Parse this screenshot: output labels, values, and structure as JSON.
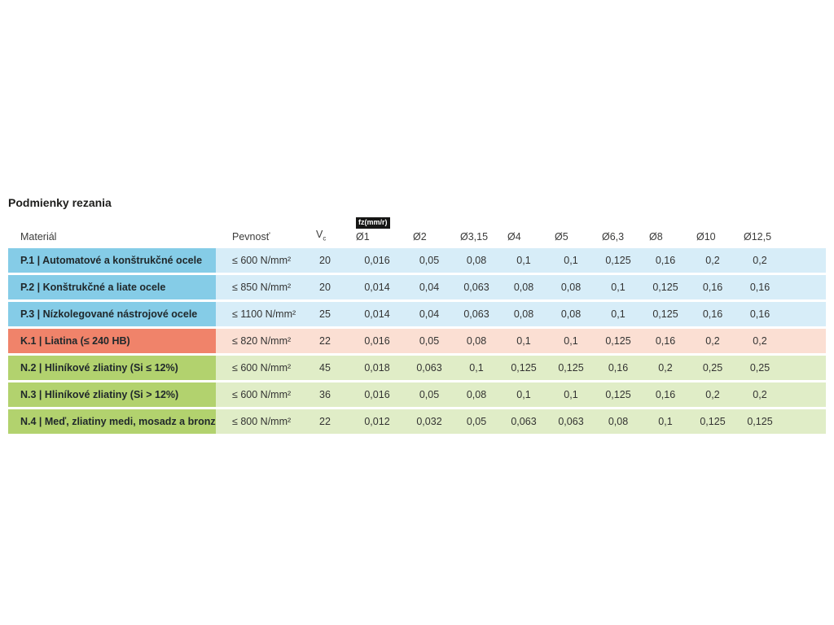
{
  "page": {
    "title": "Podmienky rezania"
  },
  "colors": {
    "steel_strong": "#85CCE7",
    "steel_light": "#D7EDF8",
    "cast_iron_strong": "#F0836A",
    "cast_iron_light": "#FBDFD3",
    "nonferrous_strong": "#B2D26E",
    "nonferrous_light": "#E0EDC7",
    "badge_bg": "#161615",
    "badge_text": "#FFFFFF"
  },
  "table": {
    "headers": {
      "material": "Materiál",
      "strength": "Pevnosť",
      "vc_main": "V",
      "vc_sub": "c",
      "feed_badge": "fz(mm/r)"
    },
    "diameter_columns": [
      "Ø1",
      "Ø2",
      "Ø3,15",
      "Ø4",
      "Ø5",
      "Ø6,3",
      "Ø8",
      "Ø10",
      "Ø12,5"
    ],
    "rows": [
      {
        "code": "P.1",
        "material": "P.1 | Automatové a konštrukčné ocele",
        "strength": "≤ 600 N/mm²",
        "vc": "20",
        "group": "steel",
        "feeds": [
          "0,016",
          "0,05",
          "0,08",
          "0,1",
          "0,1",
          "0,125",
          "0,16",
          "0,2",
          "0,2"
        ]
      },
      {
        "code": "P.2",
        "material": "P.2 | Konštrukčné a liate ocele",
        "strength": "≤ 850 N/mm²",
        "vc": "20",
        "group": "steel",
        "feeds": [
          "0,014",
          "0,04",
          "0,063",
          "0,08",
          "0,08",
          "0,1",
          "0,125",
          "0,16",
          "0,16"
        ]
      },
      {
        "code": "P.3",
        "material": "P.3 | Nízkolegované nástrojové ocele",
        "strength": "≤ 1100 N/mm²",
        "vc": "25",
        "group": "steel",
        "feeds": [
          "0,014",
          "0,04",
          "0,063",
          "0,08",
          "0,08",
          "0,1",
          "0,125",
          "0,16",
          "0,16"
        ]
      },
      {
        "code": "K.1",
        "material": "K.1 | Liatina (≤ 240 HB)",
        "strength": "≤ 820 N/mm²",
        "vc": "22",
        "group": "cast-iron",
        "feeds": [
          "0,016",
          "0,05",
          "0,08",
          "0,1",
          "0,1",
          "0,125",
          "0,16",
          "0,2",
          "0,2"
        ]
      },
      {
        "code": "N.2",
        "material": "N.2 | Hliníkové zliatiny (Si ≤ 12%)",
        "strength": "≤ 600 N/mm²",
        "vc": "45",
        "group": "nonferrous",
        "feeds": [
          "0,018",
          "0,063",
          "0,1",
          "0,125",
          "0,125",
          "0,16",
          "0,2",
          "0,25",
          "0,25"
        ]
      },
      {
        "code": "N.3",
        "material": "N.3 | Hliníkové zliatiny (Si > 12%)",
        "strength": "≤ 600 N/mm²",
        "vc": "36",
        "group": "nonferrous",
        "feeds": [
          "0,016",
          "0,05",
          "0,08",
          "0,1",
          "0,1",
          "0,125",
          "0,16",
          "0,2",
          "0,2"
        ]
      },
      {
        "code": "N.4",
        "material": "N.4 | Meď, zliatiny medi, mosadz a bronz",
        "strength": "≤ 800 N/mm²",
        "vc": "22",
        "group": "nonferrous",
        "feeds": [
          "0,012",
          "0,032",
          "0,05",
          "0,063",
          "0,063",
          "0,08",
          "0,1",
          "0,125",
          "0,125"
        ]
      }
    ]
  }
}
